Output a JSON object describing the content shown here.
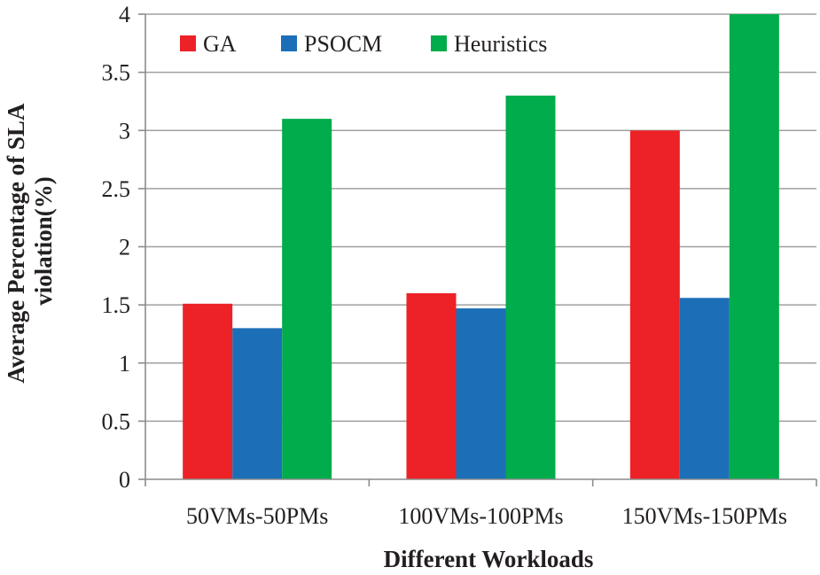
{
  "chart_data": {
    "type": "bar",
    "title": "",
    "xlabel": "Different Workloads",
    "ylabel_lines": [
      "Average Percentage of SLA",
      "violation(%)"
    ],
    "categories": [
      "50VMs-50PMs",
      "100VMs-100PMs",
      "150VMs-150PMs"
    ],
    "series": [
      {
        "name": "GA",
        "color": "#ec2227",
        "values": [
          1.51,
          1.6,
          3.0
        ]
      },
      {
        "name": "PSOCM",
        "color": "#1c6fb7",
        "values": [
          1.3,
          1.47,
          1.56
        ]
      },
      {
        "name": "Heuristics",
        "color": "#00ac4b",
        "values": [
          3.1,
          3.3,
          4.0
        ]
      }
    ],
    "ylim": [
      0,
      4
    ],
    "yticks": [
      0,
      0.5,
      1,
      1.5,
      2,
      2.5,
      3,
      3.5,
      4
    ],
    "grid": true,
    "legend_position": "top-left"
  }
}
